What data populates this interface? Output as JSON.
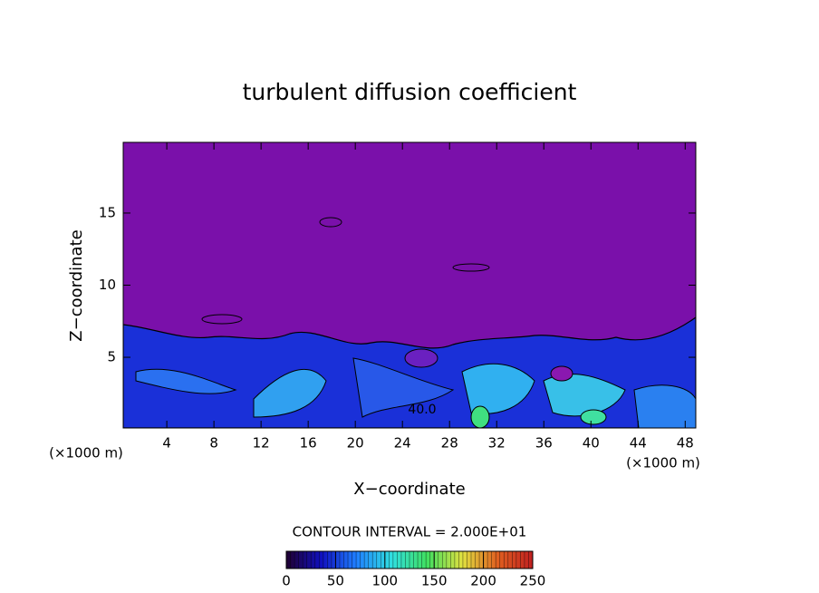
{
  "chart_data": {
    "type": "contour",
    "title": "turbulent diffusion coefficient",
    "x_label": "X−coordinate",
    "y_label": "Z−coordinate",
    "x_unit_label": "(×1000 m)",
    "contour_interval_label": "CONTOUR INTERVAL = 2.000E+01",
    "contour_labels": [
      "40.0"
    ],
    "xlim": [
      0.3,
      48.9
    ],
    "xticks": [
      4,
      8,
      12,
      16,
      20,
      24,
      28,
      32,
      36,
      40,
      44,
      48
    ],
    "ylim": [
      0.1,
      19.9
    ],
    "yticks": [
      5,
      10,
      15
    ],
    "colorbar": {
      "lim": [
        0,
        250
      ],
      "ticks": [
        0,
        50,
        100,
        150,
        200,
        250
      ],
      "colors": [
        "#200030",
        "#1010c0",
        "#2080ff",
        "#30e0e0",
        "#40e060",
        "#e0e040",
        "#e06020",
        "#c02020"
      ]
    },
    "background_color": "#7a10aa"
  }
}
